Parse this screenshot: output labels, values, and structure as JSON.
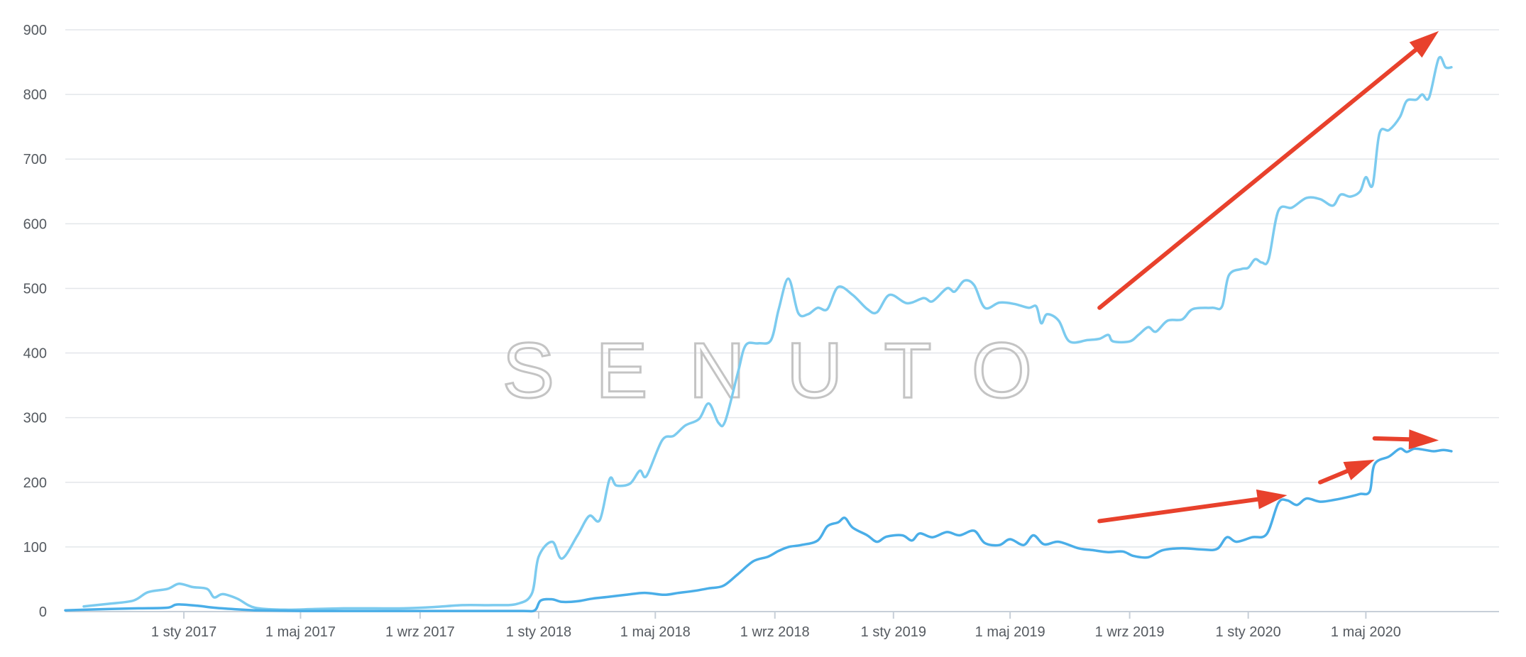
{
  "watermark": "SENUTO",
  "colors": {
    "series_light": "#7ccbef",
    "series_dark": "#4aaee8",
    "arrow": "#e8412c",
    "grid": "#e3e6ea",
    "axis": "#c7cfd8",
    "watermark": "#c4c4c4"
  },
  "chart_data": {
    "type": "line",
    "title": "",
    "xlabel": "",
    "ylabel": "",
    "ylim": [
      0,
      900
    ],
    "yticks": [
      0,
      100,
      200,
      300,
      400,
      500,
      600,
      700,
      800,
      900
    ],
    "xticks": [
      {
        "label": "1 sty 2017",
        "date": "2017-01-01"
      },
      {
        "label": "1 maj 2017",
        "date": "2017-05-01"
      },
      {
        "label": "1 wrz 2017",
        "date": "2017-09-01"
      },
      {
        "label": "1 sty 2018",
        "date": "2018-01-01"
      },
      {
        "label": "1 maj 2018",
        "date": "2018-05-01"
      },
      {
        "label": "1 wrz 2018",
        "date": "2018-09-01"
      },
      {
        "label": "1 sty 2019",
        "date": "2019-01-01"
      },
      {
        "label": "1 maj 2019",
        "date": "2019-05-01"
      },
      {
        "label": "1 wrz 2019",
        "date": "2019-09-01"
      },
      {
        "label": "1 sty 2020",
        "date": "2020-01-01"
      },
      {
        "label": "1 maj 2020",
        "date": "2020-05-01"
      }
    ],
    "xlim": [
      "2016-09-01",
      "2020-09-15"
    ],
    "grid": true,
    "legend": "none",
    "series": [
      {
        "color": "#7ccbef",
        "points": [
          [
            "2016-09-20",
            8
          ],
          [
            "2016-10-15",
            12
          ],
          [
            "2016-11-10",
            17
          ],
          [
            "2016-11-25",
            30
          ],
          [
            "2016-12-15",
            35
          ],
          [
            "2016-12-27",
            43
          ],
          [
            "2017-01-10",
            38
          ],
          [
            "2017-01-25",
            35
          ],
          [
            "2017-02-01",
            22
          ],
          [
            "2017-02-10",
            27
          ],
          [
            "2017-02-25",
            20
          ],
          [
            "2017-03-15",
            6
          ],
          [
            "2017-04-15",
            3
          ],
          [
            "2017-05-15",
            4
          ],
          [
            "2017-06-15",
            5
          ],
          [
            "2017-07-15",
            5
          ],
          [
            "2017-08-15",
            5
          ],
          [
            "2017-09-15",
            7
          ],
          [
            "2017-10-15",
            10
          ],
          [
            "2017-11-15",
            10
          ],
          [
            "2017-12-10",
            12
          ],
          [
            "2017-12-25",
            28
          ],
          [
            "2018-01-01",
            85
          ],
          [
            "2018-01-15",
            108
          ],
          [
            "2018-01-25",
            82
          ],
          [
            "2018-02-10",
            118
          ],
          [
            "2018-02-22",
            148
          ],
          [
            "2018-03-05",
            142
          ],
          [
            "2018-03-15",
            205
          ],
          [
            "2018-03-22",
            195
          ],
          [
            "2018-04-05",
            198
          ],
          [
            "2018-04-15",
            218
          ],
          [
            "2018-04-22",
            210
          ],
          [
            "2018-05-08",
            265
          ],
          [
            "2018-05-20",
            272
          ],
          [
            "2018-06-01",
            288
          ],
          [
            "2018-06-15",
            298
          ],
          [
            "2018-06-25",
            322
          ],
          [
            "2018-07-05",
            292
          ],
          [
            "2018-07-12",
            295
          ],
          [
            "2018-07-25",
            370
          ],
          [
            "2018-08-02",
            412
          ],
          [
            "2018-08-15",
            415
          ],
          [
            "2018-08-28",
            420
          ],
          [
            "2018-09-05",
            468
          ],
          [
            "2018-09-15",
            515
          ],
          [
            "2018-09-25",
            462
          ],
          [
            "2018-10-05",
            460
          ],
          [
            "2018-10-15",
            470
          ],
          [
            "2018-10-25",
            468
          ],
          [
            "2018-11-05",
            502
          ],
          [
            "2018-11-20",
            490
          ],
          [
            "2018-12-05",
            468
          ],
          [
            "2018-12-15",
            463
          ],
          [
            "2018-12-28",
            490
          ],
          [
            "2019-01-15",
            477
          ],
          [
            "2019-02-01",
            485
          ],
          [
            "2019-02-10",
            480
          ],
          [
            "2019-02-25",
            500
          ],
          [
            "2019-03-05",
            495
          ],
          [
            "2019-03-15",
            512
          ],
          [
            "2019-03-25",
            505
          ],
          [
            "2019-04-05",
            470
          ],
          [
            "2019-04-20",
            478
          ],
          [
            "2019-05-05",
            476
          ],
          [
            "2019-05-20",
            470
          ],
          [
            "2019-05-28",
            472
          ],
          [
            "2019-06-02",
            446
          ],
          [
            "2019-06-08",
            460
          ],
          [
            "2019-06-20",
            450
          ],
          [
            "2019-07-01",
            418
          ],
          [
            "2019-07-20",
            420
          ],
          [
            "2019-08-01",
            422
          ],
          [
            "2019-08-10",
            428
          ],
          [
            "2019-08-15",
            418
          ],
          [
            "2019-09-01",
            418
          ],
          [
            "2019-09-10",
            428
          ],
          [
            "2019-09-20",
            440
          ],
          [
            "2019-09-28",
            433
          ],
          [
            "2019-10-10",
            450
          ],
          [
            "2019-10-25",
            452
          ],
          [
            "2019-11-05",
            468
          ],
          [
            "2019-11-25",
            470
          ],
          [
            "2019-12-05",
            472
          ],
          [
            "2019-12-12",
            520
          ],
          [
            "2019-12-25",
            530
          ],
          [
            "2020-01-01",
            532
          ],
          [
            "2020-01-08",
            545
          ],
          [
            "2020-01-15",
            540
          ],
          [
            "2020-01-22",
            545
          ],
          [
            "2020-02-01",
            620
          ],
          [
            "2020-02-15",
            625
          ],
          [
            "2020-03-01",
            640
          ],
          [
            "2020-03-15",
            638
          ],
          [
            "2020-03-28",
            628
          ],
          [
            "2020-04-05",
            645
          ],
          [
            "2020-04-15",
            642
          ],
          [
            "2020-04-25",
            650
          ],
          [
            "2020-05-01",
            672
          ],
          [
            "2020-05-08",
            660
          ],
          [
            "2020-05-15",
            740
          ],
          [
            "2020-05-25",
            745
          ],
          [
            "2020-06-05",
            765
          ],
          [
            "2020-06-12",
            790
          ],
          [
            "2020-06-22",
            792
          ],
          [
            "2020-06-28",
            800
          ],
          [
            "2020-07-05",
            795
          ],
          [
            "2020-07-15",
            856
          ],
          [
            "2020-07-22",
            842
          ],
          [
            "2020-07-28",
            842
          ]
        ]
      },
      {
        "color": "#4aaee8",
        "points": [
          [
            "2016-09-01",
            2
          ],
          [
            "2016-10-15",
            4
          ],
          [
            "2016-11-15",
            5
          ],
          [
            "2016-12-15",
            6
          ],
          [
            "2016-12-25",
            11
          ],
          [
            "2017-01-15",
            9
          ],
          [
            "2017-02-01",
            6
          ],
          [
            "2017-02-20",
            4
          ],
          [
            "2017-03-15",
            2
          ],
          [
            "2017-05-01",
            1
          ],
          [
            "2017-07-01",
            1
          ],
          [
            "2017-09-01",
            1
          ],
          [
            "2017-11-01",
            1
          ],
          [
            "2017-12-15",
            1
          ],
          [
            "2017-12-28",
            2
          ],
          [
            "2018-01-03",
            17
          ],
          [
            "2018-01-15",
            19
          ],
          [
            "2018-01-25",
            15
          ],
          [
            "2018-02-10",
            16
          ],
          [
            "2018-02-25",
            20
          ],
          [
            "2018-03-15",
            23
          ],
          [
            "2018-04-01",
            26
          ],
          [
            "2018-04-20",
            29
          ],
          [
            "2018-05-10",
            26
          ],
          [
            "2018-05-25",
            29
          ],
          [
            "2018-06-10",
            32
          ],
          [
            "2018-06-25",
            36
          ],
          [
            "2018-07-10",
            40
          ],
          [
            "2018-07-25",
            58
          ],
          [
            "2018-08-10",
            78
          ],
          [
            "2018-08-25",
            85
          ],
          [
            "2018-09-05",
            94
          ],
          [
            "2018-09-15",
            100
          ],
          [
            "2018-09-28",
            103
          ],
          [
            "2018-10-15",
            110
          ],
          [
            "2018-10-25",
            132
          ],
          [
            "2018-11-05",
            138
          ],
          [
            "2018-11-12",
            145
          ],
          [
            "2018-11-20",
            130
          ],
          [
            "2018-12-05",
            118
          ],
          [
            "2018-12-15",
            108
          ],
          [
            "2018-12-25",
            116
          ],
          [
            "2019-01-10",
            118
          ],
          [
            "2019-01-20",
            110
          ],
          [
            "2019-01-28",
            121
          ],
          [
            "2019-02-10",
            115
          ],
          [
            "2019-02-25",
            123
          ],
          [
            "2019-03-10",
            118
          ],
          [
            "2019-03-25",
            125
          ],
          [
            "2019-04-05",
            106
          ],
          [
            "2019-04-20",
            103
          ],
          [
            "2019-05-01",
            112
          ],
          [
            "2019-05-15",
            103
          ],
          [
            "2019-05-25",
            118
          ],
          [
            "2019-06-05",
            104
          ],
          [
            "2019-06-20",
            108
          ],
          [
            "2019-07-10",
            98
          ],
          [
            "2019-07-25",
            95
          ],
          [
            "2019-08-10",
            92
          ],
          [
            "2019-08-25",
            93
          ],
          [
            "2019-09-05",
            86
          ],
          [
            "2019-09-20",
            84
          ],
          [
            "2019-10-05",
            95
          ],
          [
            "2019-10-25",
            98
          ],
          [
            "2019-11-15",
            96
          ],
          [
            "2019-11-30",
            97
          ],
          [
            "2019-12-10",
            115
          ],
          [
            "2019-12-20",
            108
          ],
          [
            "2020-01-05",
            115
          ],
          [
            "2020-01-20",
            120
          ],
          [
            "2020-02-01",
            168
          ],
          [
            "2020-02-10",
            172
          ],
          [
            "2020-02-20",
            165
          ],
          [
            "2020-03-01",
            175
          ],
          [
            "2020-03-15",
            170
          ],
          [
            "2020-03-30",
            173
          ],
          [
            "2020-04-15",
            178
          ],
          [
            "2020-04-25",
            182
          ],
          [
            "2020-05-05",
            186
          ],
          [
            "2020-05-10",
            228
          ],
          [
            "2020-05-25",
            240
          ],
          [
            "2020-06-05",
            252
          ],
          [
            "2020-06-12",
            247
          ],
          [
            "2020-06-20",
            252
          ],
          [
            "2020-07-01",
            250
          ],
          [
            "2020-07-10",
            248
          ],
          [
            "2020-07-20",
            250
          ],
          [
            "2020-07-28",
            248
          ]
        ]
      }
    ],
    "annotations": [
      {
        "type": "arrow",
        "from": [
          "2019-08-01",
          470
        ],
        "to": [
          "2020-07-15",
          898
        ]
      },
      {
        "type": "arrow",
        "from": [
          "2019-08-01",
          140
        ],
        "to": [
          "2020-02-10",
          180
        ]
      },
      {
        "type": "arrow",
        "from": [
          "2020-03-15",
          200
        ],
        "to": [
          "2020-05-10",
          235
        ]
      },
      {
        "type": "arrow",
        "from": [
          "2020-05-10",
          268
        ],
        "to": [
          "2020-07-15",
          265
        ]
      }
    ]
  }
}
